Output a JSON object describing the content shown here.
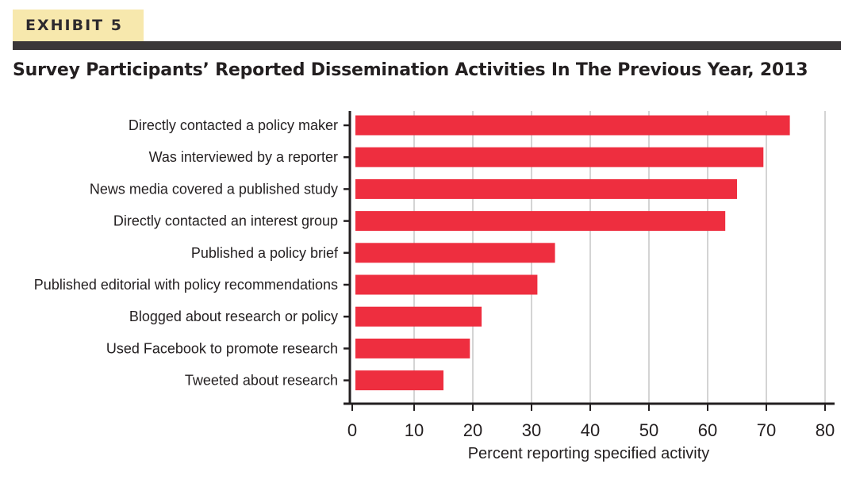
{
  "exhibit_label": "EXHIBIT 5",
  "colors": {
    "bar": "#ee2e3f",
    "axis": "#231f20",
    "grid": "#c6c6c6",
    "tag_bg": "#f7e8ad",
    "rule": "#3a3739"
  },
  "chart_data": {
    "type": "bar",
    "orientation": "horizontal",
    "title": "Survey Participants’ Reported Dissemination Activities In The Previous Year, 2013",
    "xlabel": "Percent reporting specified activity",
    "ylabel": "",
    "xlim": [
      0,
      80
    ],
    "xticks": [
      0,
      10,
      20,
      30,
      40,
      50,
      60,
      70,
      80
    ],
    "grid": "vertical",
    "categories": [
      "Directly contacted a policy maker",
      "Was interviewed by a reporter",
      "News media covered a published study",
      "Directly contacted an interest group",
      "Published a policy brief",
      "Published editorial with policy recommendations",
      "Blogged about research or policy",
      "Used Facebook to promote research",
      "Tweeted about research"
    ],
    "values": [
      74,
      69.5,
      65,
      63,
      34,
      31,
      21.5,
      19.5,
      15
    ]
  }
}
